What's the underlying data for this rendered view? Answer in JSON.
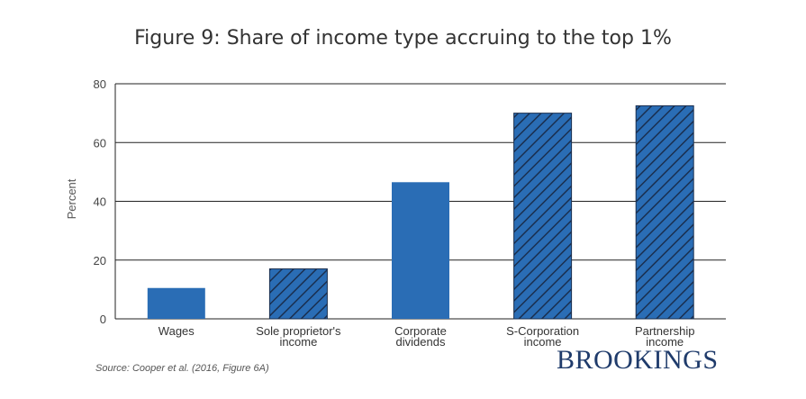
{
  "chart_data": {
    "type": "bar",
    "title": "Figure 9: Share of income type accruing to the top 1%",
    "ylabel": "Percent",
    "xlabel": "",
    "ylim": [
      0,
      80
    ],
    "yticks": [
      0,
      20,
      40,
      60,
      80
    ],
    "grid": true,
    "categories": [
      [
        "Wages"
      ],
      [
        "Sole proprietor's",
        "income"
      ],
      [
        "Corporate",
        "dividends"
      ],
      [
        "S-Corporation",
        "income"
      ],
      [
        "Partnership",
        "income"
      ]
    ],
    "values": [
      10.5,
      17,
      46.5,
      70,
      72.5
    ],
    "hatched": [
      false,
      true,
      false,
      true,
      true
    ],
    "bar_color": "#2a6db5",
    "hatch_color": "#1a2f4f"
  },
  "source": "Source: Cooper et al. (2016, Figure 6A)",
  "logo": "BROOKINGS"
}
